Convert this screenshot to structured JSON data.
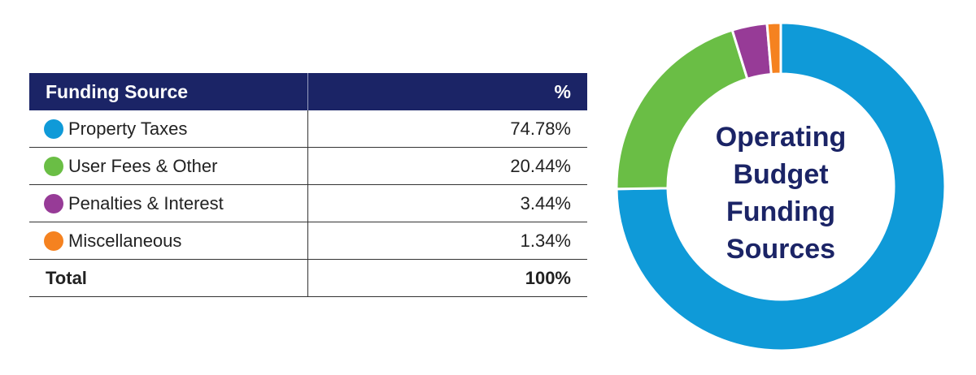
{
  "table": {
    "header": {
      "source": "Funding Source",
      "percent": "%"
    },
    "rows": [
      {
        "label": "Property Taxes",
        "percent": "74.78%",
        "color": "#0f9ad8"
      },
      {
        "label": "User Fees & Other",
        "percent": "20.44%",
        "color": "#6abe45"
      },
      {
        "label": "Penalties & Interest",
        "percent": "3.44%",
        "color": "#973b97"
      },
      {
        "label": "Miscellaneous",
        "percent": "1.34%",
        "color": "#f58220"
      }
    ],
    "total": {
      "label": "Total",
      "percent": "100%"
    }
  },
  "chart_data": {
    "type": "pie",
    "title_lines": [
      "Operating",
      "Budget",
      "Funding",
      "Sources"
    ],
    "categories": [
      "Property Taxes",
      "User Fees & Other",
      "Penalties & Interest",
      "Miscellaneous"
    ],
    "values": [
      74.78,
      20.44,
      3.44,
      1.34
    ],
    "colors": [
      "#0f9ad8",
      "#6abe45",
      "#973b97",
      "#f58220"
    ],
    "donut": true,
    "start": "top",
    "direction": "clockwise"
  }
}
